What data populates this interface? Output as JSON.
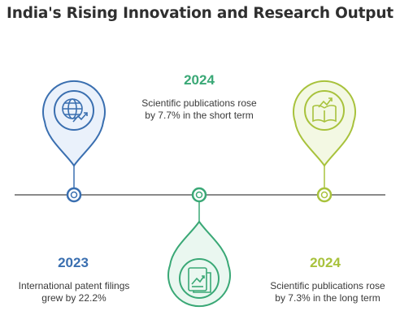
{
  "title": "India's Rising Innovation and Research Output",
  "colors": {
    "blue": "#3a6fb0",
    "teal": "#3aa876",
    "olive": "#a8c23c",
    "timeline": "#8a8a8a"
  },
  "events": [
    {
      "year": "2023",
      "description": "International patent filings grew by 22.2%",
      "icon": "globe-chart-icon",
      "color": "#3a6fb0"
    },
    {
      "year": "2024",
      "description": "Scientific publications rose by 7.7% in the short term",
      "icon": "document-chart-icon",
      "color": "#3aa876"
    },
    {
      "year": "2024",
      "description": "Scientific publications rose by 7.3% in the long term",
      "icon": "book-trend-icon",
      "color": "#a8c23c"
    }
  ]
}
